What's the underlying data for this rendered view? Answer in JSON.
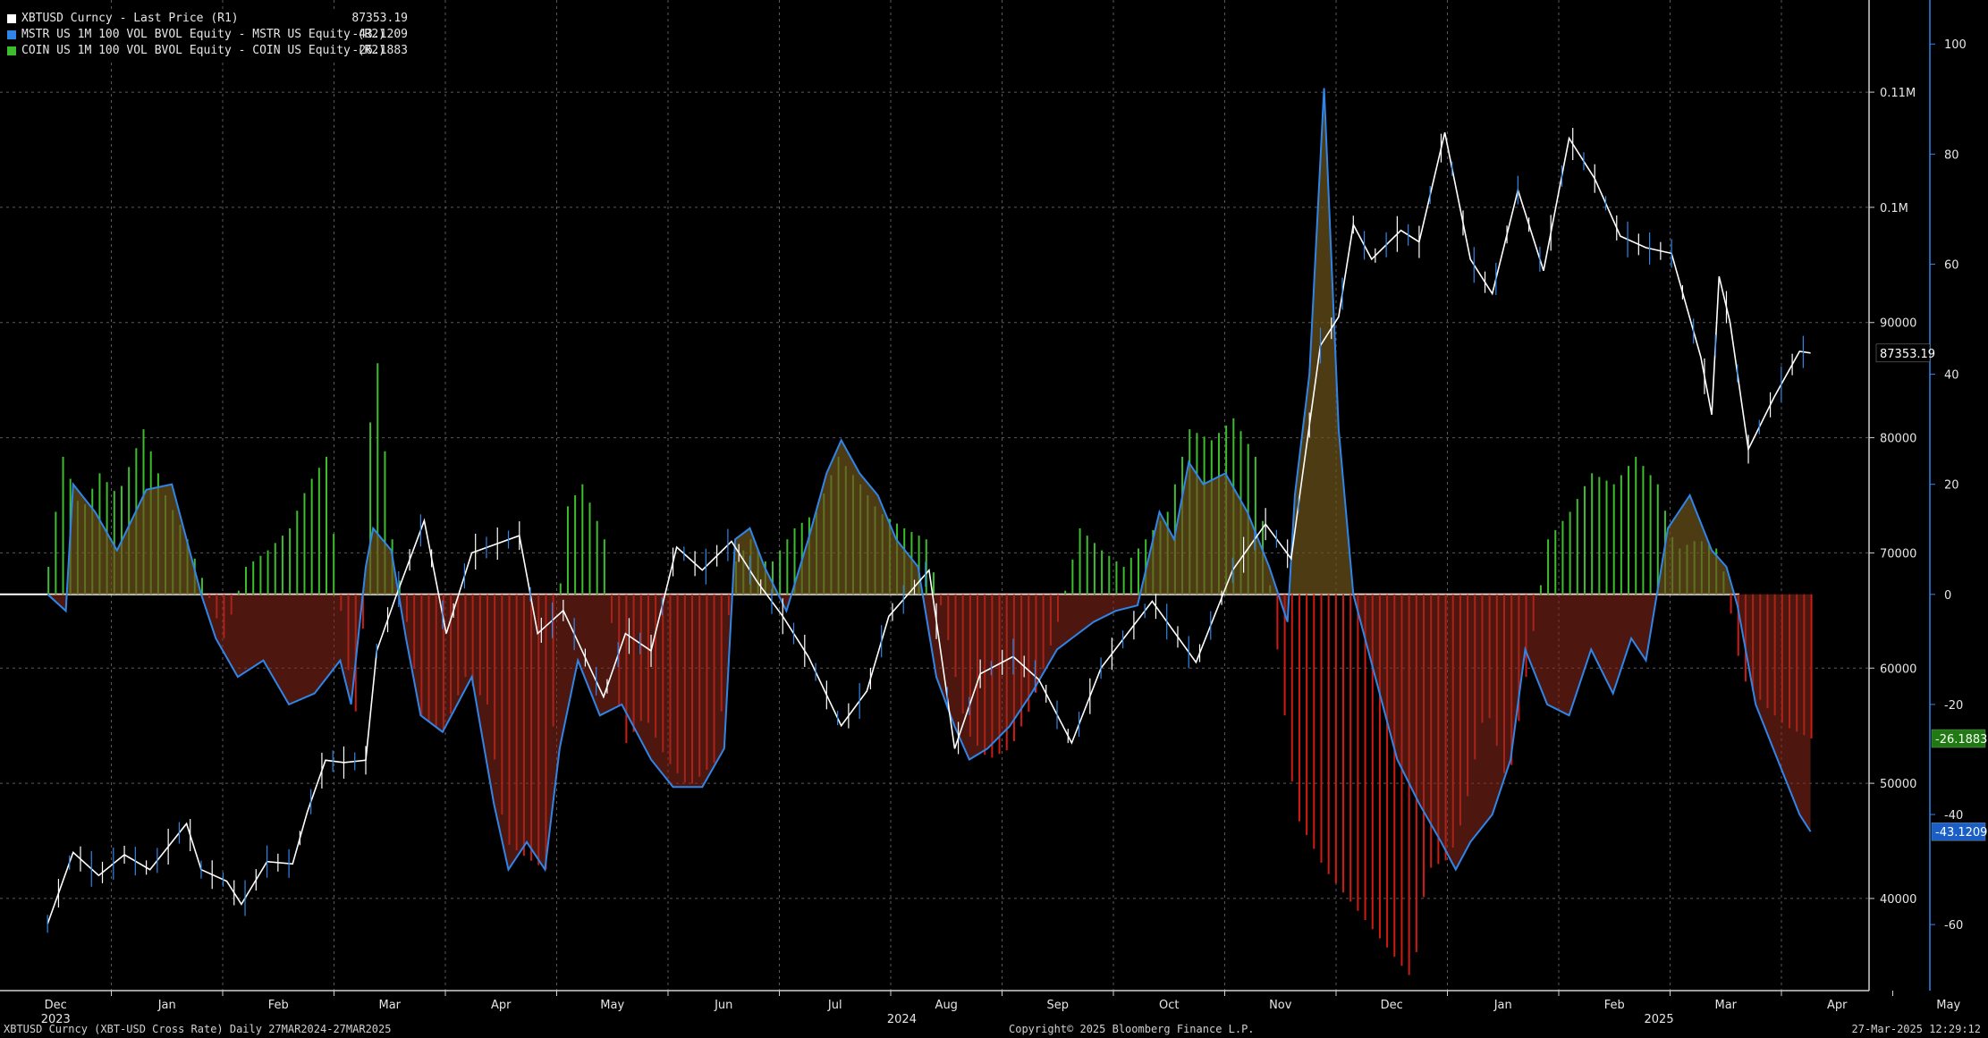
{
  "legend": [
    {
      "name": "XBTUSD Curncy - Last Price (R1)",
      "value": "87353.19",
      "color": "#ffffff"
    },
    {
      "name": "MSTR US 1M 100 VOL BVOL Equity - MSTR US Equity (R2)",
      "value": "-43.1209",
      "color": "#2f86e8"
    },
    {
      "name": "COIN US 1M 100 VOL BVOL Equity - COIN US Equity (R2)",
      "value": "-26.1883",
      "color": "#3dbd2d"
    }
  ],
  "footer": {
    "left": "XBTUSD Curncy (XBT-USD Cross Rate)  Daily 27MAR2024-27MAR2025",
    "center": "Copyright© 2025 Bloomberg Finance L.P.",
    "right": "27-Mar-2025 12:29:12"
  },
  "colors": {
    "background": "#000000",
    "price": "#ffffff",
    "mstr": "#2f86e8",
    "coin": "#3dbd2d",
    "negative_fill": "#d11b12",
    "positive_fill": "#3dbd2d"
  },
  "chart_data": {
    "type": "line",
    "x_axis": {
      "months": [
        "Dec",
        "Jan",
        "Feb",
        "Mar",
        "Apr",
        "May",
        "Jun",
        "Jul",
        "Aug",
        "Sep",
        "Oct",
        "Nov",
        "Dec",
        "Jan",
        "Feb",
        "Mar",
        "Apr",
        "May"
      ],
      "years": [
        "2023",
        "2024",
        "2025"
      ]
    },
    "y_axis_r1": {
      "ticks": [
        "40000",
        "50000",
        "60000",
        "70000",
        "80000",
        "90000",
        "0.1M",
        "0.11M"
      ],
      "range": [
        32000,
        118000
      ]
    },
    "y_axis_r2": {
      "ticks": [
        "-60",
        "-40",
        "-20",
        "0",
        "20",
        "40",
        "60",
        "80",
        "100"
      ],
      "range": [
        -72,
        108
      ]
    },
    "last_value_labels": {
      "price": "87353.19",
      "coin": "-26.1883",
      "mstr": "-43.1209"
    },
    "series": [
      {
        "name": "XBTUSD Curncy - Last Price (R1)",
        "axis": "R1",
        "points": [
          [
            "2023-12-01",
            37800
          ],
          [
            "2023-12-08",
            44000
          ],
          [
            "2023-12-15",
            42000
          ],
          [
            "2023-12-22",
            43800
          ],
          [
            "2023-12-29",
            42500
          ],
          [
            "2024-01-08",
            46500
          ],
          [
            "2024-01-12",
            42500
          ],
          [
            "2024-01-19",
            41500
          ],
          [
            "2024-01-23",
            39500
          ],
          [
            "2024-01-30",
            43200
          ],
          [
            "2024-02-06",
            43000
          ],
          [
            "2024-02-10",
            47500
          ],
          [
            "2024-02-15",
            52000
          ],
          [
            "2024-02-20",
            51800
          ],
          [
            "2024-02-26",
            52000
          ],
          [
            "2024-02-29",
            61500
          ],
          [
            "2024-03-05",
            66000
          ],
          [
            "2024-03-13",
            72800
          ],
          [
            "2024-03-19",
            63000
          ],
          [
            "2024-03-26",
            70000
          ],
          [
            "2024-04-08",
            71500
          ],
          [
            "2024-04-13",
            63000
          ],
          [
            "2024-04-20",
            65000
          ],
          [
            "2024-05-01",
            57500
          ],
          [
            "2024-05-07",
            63000
          ],
          [
            "2024-05-14",
            61500
          ],
          [
            "2024-05-21",
            70500
          ],
          [
            "2024-05-28",
            68500
          ],
          [
            "2024-06-05",
            71000
          ],
          [
            "2024-06-12",
            67500
          ],
          [
            "2024-06-19",
            64500
          ],
          [
            "2024-06-26",
            61000
          ],
          [
            "2024-07-05",
            55000
          ],
          [
            "2024-07-12",
            58000
          ],
          [
            "2024-07-18",
            64500
          ],
          [
            "2024-07-29",
            68500
          ],
          [
            "2024-08-05",
            53000
          ],
          [
            "2024-08-12",
            59500
          ],
          [
            "2024-08-21",
            61000
          ],
          [
            "2024-08-28",
            59000
          ],
          [
            "2024-09-06",
            53500
          ],
          [
            "2024-09-14",
            60000
          ],
          [
            "2024-09-28",
            65800
          ],
          [
            "2024-10-10",
            60500
          ],
          [
            "2024-10-20",
            68500
          ],
          [
            "2024-10-29",
            72500
          ],
          [
            "2024-11-05",
            69500
          ],
          [
            "2024-11-08",
            76500
          ],
          [
            "2024-11-13",
            88000
          ],
          [
            "2024-11-18",
            90500
          ],
          [
            "2024-11-22",
            98500
          ],
          [
            "2024-11-27",
            95500
          ],
          [
            "2024-12-05",
            98000
          ],
          [
            "2024-12-10",
            97000
          ],
          [
            "2024-12-17",
            106500
          ],
          [
            "2024-12-24",
            95500
          ],
          [
            "2024-12-30",
            92500
          ],
          [
            "2025-01-06",
            101500
          ],
          [
            "2025-01-13",
            94500
          ],
          [
            "2025-01-20",
            106000
          ],
          [
            "2025-01-27",
            102500
          ],
          [
            "2025-02-03",
            97500
          ],
          [
            "2025-02-10",
            96500
          ],
          [
            "2025-02-17",
            96000
          ],
          [
            "2025-02-25",
            87000
          ],
          [
            "2025-02-28",
            82000
          ],
          [
            "2025-03-02",
            94000
          ],
          [
            "2025-03-05",
            90000
          ],
          [
            "2025-03-10",
            79000
          ],
          [
            "2025-03-17",
            83500
          ],
          [
            "2025-03-24",
            87500
          ],
          [
            "2025-03-27",
            87353
          ]
        ]
      },
      {
        "name": "MSTR US 1M 100 VOL BVOL Equity - MSTR US Equity (R2)",
        "axis": "R2",
        "points": [
          [
            "2023-12-01",
            0
          ],
          [
            "2023-12-06",
            -3
          ],
          [
            "2023-12-08",
            20
          ],
          [
            "2023-12-14",
            15
          ],
          [
            "2023-12-20",
            8
          ],
          [
            "2023-12-28",
            19
          ],
          [
            "2024-01-04",
            20
          ],
          [
            "2024-01-08",
            10
          ],
          [
            "2024-01-12",
            0
          ],
          [
            "2024-01-16",
            -8
          ],
          [
            "2024-01-22",
            -15
          ],
          [
            "2024-01-29",
            -12
          ],
          [
            "2024-02-05",
            -20
          ],
          [
            "2024-02-12",
            -18
          ],
          [
            "2024-02-19",
            -12
          ],
          [
            "2024-02-22",
            -20
          ],
          [
            "2024-02-26",
            5
          ],
          [
            "2024-02-28",
            12
          ],
          [
            "2024-03-04",
            8
          ],
          [
            "2024-03-08",
            -8
          ],
          [
            "2024-03-12",
            -22
          ],
          [
            "2024-03-18",
            -25
          ],
          [
            "2024-03-22",
            -20
          ],
          [
            "2024-03-26",
            -15
          ],
          [
            "2024-04-01",
            -38
          ],
          [
            "2024-04-05",
            -50
          ],
          [
            "2024-04-10",
            -45
          ],
          [
            "2024-04-15",
            -50
          ],
          [
            "2024-04-19",
            -28
          ],
          [
            "2024-04-24",
            -12
          ],
          [
            "2024-04-30",
            -22
          ],
          [
            "2024-05-06",
            -20
          ],
          [
            "2024-05-10",
            -25
          ],
          [
            "2024-05-14",
            -30
          ],
          [
            "2024-05-20",
            -35
          ],
          [
            "2024-05-28",
            -35
          ],
          [
            "2024-06-03",
            -28
          ],
          [
            "2024-06-06",
            10
          ],
          [
            "2024-06-10",
            12
          ],
          [
            "2024-06-14",
            5
          ],
          [
            "2024-06-20",
            -3
          ],
          [
            "2024-06-26",
            10
          ],
          [
            "2024-07-01",
            22
          ],
          [
            "2024-07-05",
            28
          ],
          [
            "2024-07-10",
            22
          ],
          [
            "2024-07-15",
            18
          ],
          [
            "2024-07-20",
            10
          ],
          [
            "2024-07-26",
            5
          ],
          [
            "2024-07-31",
            -15
          ],
          [
            "2024-08-05",
            -24
          ],
          [
            "2024-08-09",
            -30
          ],
          [
            "2024-08-14",
            -28
          ],
          [
            "2024-08-20",
            -24
          ],
          [
            "2024-08-26",
            -18
          ],
          [
            "2024-09-02",
            -10
          ],
          [
            "2024-09-06",
            -8
          ],
          [
            "2024-09-12",
            -5
          ],
          [
            "2024-09-18",
            -3
          ],
          [
            "2024-09-24",
            -2
          ],
          [
            "2024-09-30",
            15
          ],
          [
            "2024-10-04",
            10
          ],
          [
            "2024-10-08",
            24
          ],
          [
            "2024-10-12",
            20
          ],
          [
            "2024-10-18",
            22
          ],
          [
            "2024-10-24",
            15
          ],
          [
            "2024-10-30",
            5
          ],
          [
            "2024-11-04",
            -5
          ],
          [
            "2024-11-06",
            18
          ],
          [
            "2024-11-10",
            40
          ],
          [
            "2024-11-14",
            92
          ],
          [
            "2024-11-18",
            30
          ],
          [
            "2024-11-22",
            0
          ],
          [
            "2024-11-28",
            -15
          ],
          [
            "2024-12-04",
            -30
          ],
          [
            "2024-12-10",
            -38
          ],
          [
            "2024-12-16",
            -45
          ],
          [
            "2024-12-20",
            -50
          ],
          [
            "2024-12-24",
            -45
          ],
          [
            "2024-12-30",
            -40
          ],
          [
            "2025-01-04",
            -30
          ],
          [
            "2025-01-08",
            -10
          ],
          [
            "2025-01-14",
            -20
          ],
          [
            "2025-01-20",
            -22
          ],
          [
            "2025-01-26",
            -10
          ],
          [
            "2025-02-01",
            -18
          ],
          [
            "2025-02-06",
            -8
          ],
          [
            "2025-02-10",
            -12
          ],
          [
            "2025-02-16",
            12
          ],
          [
            "2025-02-22",
            18
          ],
          [
            "2025-02-28",
            8
          ],
          [
            "2025-03-04",
            5
          ],
          [
            "2025-03-07",
            -2
          ],
          [
            "2025-03-12",
            -20
          ],
          [
            "2025-03-18",
            -30
          ],
          [
            "2025-03-24",
            -40
          ],
          [
            "2025-03-27",
            -43.12
          ]
        ]
      },
      {
        "name": "COIN US 1M 100 VOL BVOL Equity - COIN US Equity (R2)",
        "axis": "R2",
        "points": [
          [
            "2023-12-01",
            5
          ],
          [
            "2023-12-05",
            25
          ],
          [
            "2023-12-10",
            15
          ],
          [
            "2023-12-15",
            22
          ],
          [
            "2023-12-20",
            18
          ],
          [
            "2023-12-27",
            30
          ],
          [
            "2024-01-02",
            18
          ],
          [
            "2024-01-08",
            10
          ],
          [
            "2024-01-12",
            3
          ],
          [
            "2024-01-18",
            -8
          ],
          [
            "2024-01-24",
            5
          ],
          [
            "2024-01-30",
            8
          ],
          [
            "2024-02-05",
            12
          ],
          [
            "2024-02-10",
            20
          ],
          [
            "2024-02-15",
            25
          ],
          [
            "2024-02-20",
            -10
          ],
          [
            "2024-02-24",
            -25
          ],
          [
            "2024-02-28",
            50
          ],
          [
            "2024-03-04",
            10
          ],
          [
            "2024-03-08",
            -5
          ],
          [
            "2024-03-12",
            -22
          ],
          [
            "2024-03-18",
            -25
          ],
          [
            "2024-03-24",
            -15
          ],
          [
            "2024-03-30",
            -20
          ],
          [
            "2024-04-04",
            -45
          ],
          [
            "2024-04-10",
            -48
          ],
          [
            "2024-04-15",
            -50
          ],
          [
            "2024-04-20",
            15
          ],
          [
            "2024-04-25",
            20
          ],
          [
            "2024-05-01",
            10
          ],
          [
            "2024-05-06",
            -28
          ],
          [
            "2024-05-12",
            -22
          ],
          [
            "2024-05-18",
            -30
          ],
          [
            "2024-05-24",
            -35
          ],
          [
            "2024-06-01",
            -30
          ],
          [
            "2024-06-05",
            5
          ],
          [
            "2024-06-10",
            10
          ],
          [
            "2024-06-15",
            5
          ],
          [
            "2024-06-22",
            12
          ],
          [
            "2024-06-28",
            15
          ],
          [
            "2024-07-04",
            25
          ],
          [
            "2024-07-10",
            20
          ],
          [
            "2024-07-15",
            15
          ],
          [
            "2024-07-22",
            12
          ],
          [
            "2024-07-28",
            10
          ],
          [
            "2024-08-02",
            -5
          ],
          [
            "2024-08-08",
            -25
          ],
          [
            "2024-08-14",
            -30
          ],
          [
            "2024-08-20",
            -28
          ],
          [
            "2024-08-26",
            -20
          ],
          [
            "2024-09-02",
            -5
          ],
          [
            "2024-09-08",
            12
          ],
          [
            "2024-09-14",
            8
          ],
          [
            "2024-09-20",
            5
          ],
          [
            "2024-09-26",
            10
          ],
          [
            "2024-10-02",
            15
          ],
          [
            "2024-10-08",
            30
          ],
          [
            "2024-10-14",
            28
          ],
          [
            "2024-10-20",
            32
          ],
          [
            "2024-10-26",
            25
          ],
          [
            "2024-11-01",
            -10
          ],
          [
            "2024-11-06",
            -40
          ],
          [
            "2024-11-10",
            -45
          ],
          [
            "2024-11-14",
            -50
          ],
          [
            "2024-11-20",
            -55
          ],
          [
            "2024-11-26",
            -60
          ],
          [
            "2024-12-02",
            -65
          ],
          [
            "2024-12-08",
            -70
          ],
          [
            "2024-12-12",
            -50
          ],
          [
            "2024-12-18",
            -48
          ],
          [
            "2024-12-22",
            -40
          ],
          [
            "2024-12-28",
            -20
          ],
          [
            "2025-01-03",
            -35
          ],
          [
            "2025-01-08",
            -15
          ],
          [
            "2025-01-14",
            10
          ],
          [
            "2025-01-20",
            15
          ],
          [
            "2025-01-26",
            22
          ],
          [
            "2025-02-01",
            20
          ],
          [
            "2025-02-07",
            25
          ],
          [
            "2025-02-13",
            20
          ],
          [
            "2025-02-18",
            8
          ],
          [
            "2025-02-24",
            10
          ],
          [
            "2025-03-02",
            8
          ],
          [
            "2025-03-08",
            -15
          ],
          [
            "2025-03-14",
            -20
          ],
          [
            "2025-03-20",
            -24
          ],
          [
            "2025-03-27",
            -26.19
          ]
        ]
      }
    ]
  }
}
